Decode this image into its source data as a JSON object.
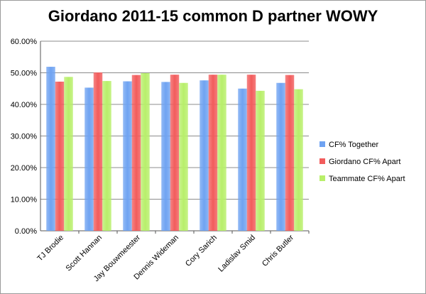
{
  "chart_data": {
    "type": "bar",
    "title": "Giordano 2011-15 common D partner WOWY",
    "categories": [
      "TJ Brodie",
      "Scott Hannan",
      "Jay Bouwmeester",
      "Dennis Wideman",
      "Cory Sarich",
      "Ladislav Smid",
      "Chris Butler"
    ],
    "series": [
      {
        "name": "CF% Together",
        "color": "#6fa3f2",
        "values": [
          51.9,
          45.3,
          47.3,
          47.1,
          47.6,
          45.0,
          46.8
        ]
      },
      {
        "name": "Giordano CF% Apart",
        "color": "#f25c5c",
        "values": [
          47.2,
          50.1,
          49.3,
          49.4,
          49.4,
          49.4,
          49.3
        ]
      },
      {
        "name": "Teammate CF% Apart",
        "color": "#b8ef6a",
        "values": [
          48.7,
          47.4,
          49.9,
          46.8,
          49.4,
          44.3,
          44.8
        ]
      }
    ],
    "ylim": [
      0,
      60
    ],
    "yticks": [
      "0.00%",
      "10.00%",
      "20.00%",
      "30.00%",
      "40.00%",
      "50.00%",
      "60.00%"
    ],
    "ytick_values": [
      0,
      10,
      20,
      30,
      40,
      50,
      60
    ],
    "grid": true,
    "legend": "right"
  }
}
